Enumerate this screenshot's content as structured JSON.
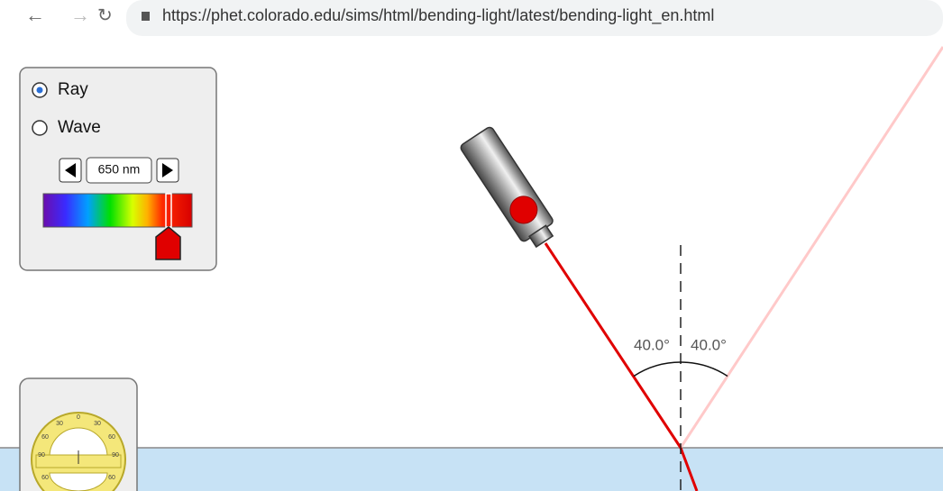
{
  "browser": {
    "url": "https://phet.colorado.edu/sims/html/bending-light/latest/bending-light_en.html"
  },
  "panel": {
    "modes": [
      "Ray",
      "Wave"
    ],
    "wavelength": "650 nm"
  },
  "angles": {
    "incident": "40.0°",
    "reflected": "40.0°"
  },
  "protractor": {
    "labels": [
      "0",
      "30",
      "30",
      "60",
      "60",
      "90",
      "90",
      "60",
      "60"
    ]
  }
}
